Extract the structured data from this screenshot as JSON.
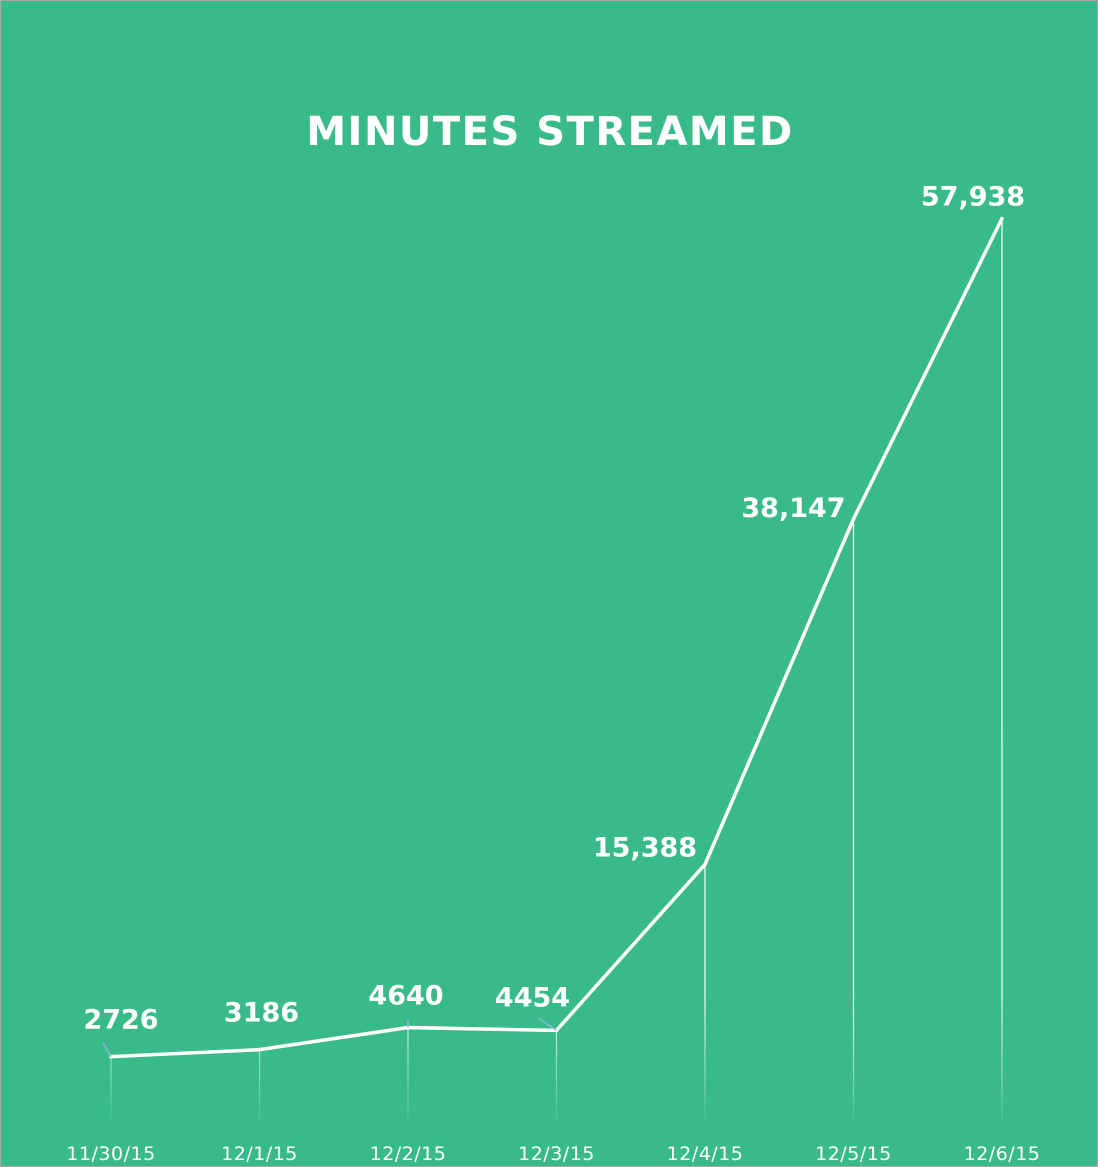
{
  "chart_data": {
    "type": "line",
    "title": "MINUTES STREAMED",
    "xlabel": "",
    "ylabel": "",
    "categories": [
      "11/30/15",
      "12/1/15",
      "12/2/15",
      "12/3/15",
      "12/4/15",
      "12/5/15",
      "12/6/15"
    ],
    "series": [
      {
        "values": [
          2726,
          3186,
          4640,
          4454,
          15388,
          38147,
          57938
        ],
        "labels": [
          "2726",
          "3186",
          "4640",
          "4454",
          "15,388",
          "38,147",
          "57,938"
        ]
      }
    ],
    "ylim": [
      0,
      60000
    ],
    "grid": false,
    "legend": "none",
    "colors": {
      "background": "#39bb89",
      "line": "#ffffff",
      "drop_line": "#ffffff",
      "callout": "#8fb8d4",
      "frame": "#a9a9a9"
    }
  }
}
